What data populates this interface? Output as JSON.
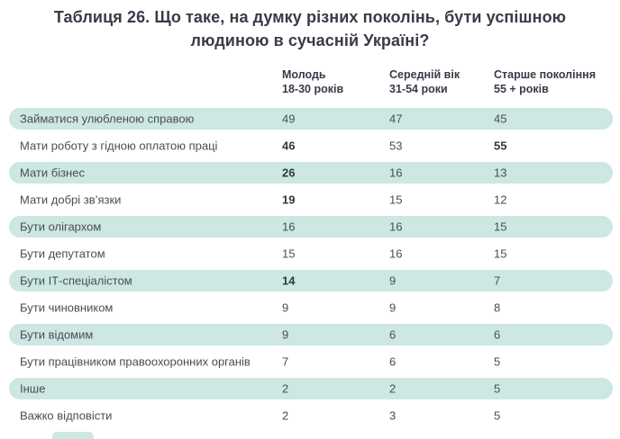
{
  "title": "Таблиця 26. Що таке, на думку різних поколінь, бути успішною людиною в сучасній Україні?",
  "title_lines": [
    "Таблиця 26. Що таке, на думку різних поколінь, бути успішною",
    "людиною в сучасній Україні?"
  ],
  "columns": [
    {
      "label": "Молодь",
      "sublabel": "18-30 років"
    },
    {
      "label": "Середній вік",
      "sublabel": "31-54 роки"
    },
    {
      "label": "Старше покоління",
      "sublabel": "55 + років"
    }
  ],
  "rows": [
    {
      "label": "Займатися улюбленою справою",
      "values": [
        49,
        47,
        45
      ],
      "bold": [
        false,
        false,
        false
      ],
      "highlighted": true
    },
    {
      "label": "Мати роботу з гідною оплатою праці",
      "values": [
        46,
        53,
        55
      ],
      "bold": [
        true,
        false,
        true
      ],
      "highlighted": false
    },
    {
      "label": "Мати бізнес",
      "values": [
        26,
        16,
        13
      ],
      "bold": [
        true,
        false,
        false
      ],
      "highlighted": true
    },
    {
      "label": "Мати добрі зв’язки",
      "values": [
        19,
        15,
        12
      ],
      "bold": [
        true,
        false,
        false
      ],
      "highlighted": false
    },
    {
      "label": "Бути олігархом",
      "values": [
        16,
        16,
        15
      ],
      "bold": [
        false,
        false,
        false
      ],
      "highlighted": true
    },
    {
      "label": "Бути депутатом",
      "values": [
        15,
        16,
        15
      ],
      "bold": [
        false,
        false,
        false
      ],
      "highlighted": false
    },
    {
      "label": "Бути ІТ-спеціалістом",
      "values": [
        14,
        9,
        7
      ],
      "bold": [
        true,
        false,
        false
      ],
      "highlighted": true
    },
    {
      "label": "Бути чиновником",
      "values": [
        9,
        9,
        8
      ],
      "bold": [
        false,
        false,
        false
      ],
      "highlighted": false
    },
    {
      "label": "Бути відомим",
      "values": [
        9,
        6,
        6
      ],
      "bold": [
        false,
        false,
        false
      ],
      "highlighted": true
    },
    {
      "label": "Бути працівником правоохоронних органів",
      "values": [
        7,
        6,
        5
      ],
      "bold": [
        false,
        false,
        false
      ],
      "highlighted": false
    },
    {
      "label": "Інше",
      "values": [
        2,
        2,
        5
      ],
      "bold": [
        false,
        false,
        false
      ],
      "highlighted": true
    },
    {
      "label": "Важко відповісти",
      "values": [
        2,
        3,
        5
      ],
      "bold": [
        false,
        false,
        false
      ],
      "highlighted": false
    }
  ],
  "colors": {
    "highlight": "#cde7e3",
    "title_text": "#383b47",
    "body_text": "#4a4d56",
    "bold_text": "#343741"
  },
  "chart_data": {
    "type": "table",
    "title": "Таблиця 26. Що таке, на думку різних поколінь, бути успішною людиною в сучасній Україні?",
    "categories": [
      "Займатися улюбленою справою",
      "Мати роботу з гідною оплатою праці",
      "Мати бізнес",
      "Мати добрі зв’язки",
      "Бути олігархом",
      "Бути депутатом",
      "Бути ІТ-спеціалістом",
      "Бути чиновником",
      "Бути відомим",
      "Бути працівником правоохоронних органів",
      "Інше",
      "Важко відповісти"
    ],
    "series": [
      {
        "name": "Молодь 18-30 років",
        "values": [
          49,
          46,
          26,
          19,
          16,
          15,
          14,
          9,
          9,
          7,
          2,
          2
        ]
      },
      {
        "name": "Середній вік 31-54 роки",
        "values": [
          47,
          53,
          16,
          15,
          16,
          16,
          9,
          9,
          6,
          6,
          2,
          3
        ]
      },
      {
        "name": "Старше покоління 55 + років",
        "values": [
          45,
          55,
          13,
          12,
          15,
          15,
          7,
          8,
          6,
          5,
          5,
          5
        ]
      }
    ]
  }
}
